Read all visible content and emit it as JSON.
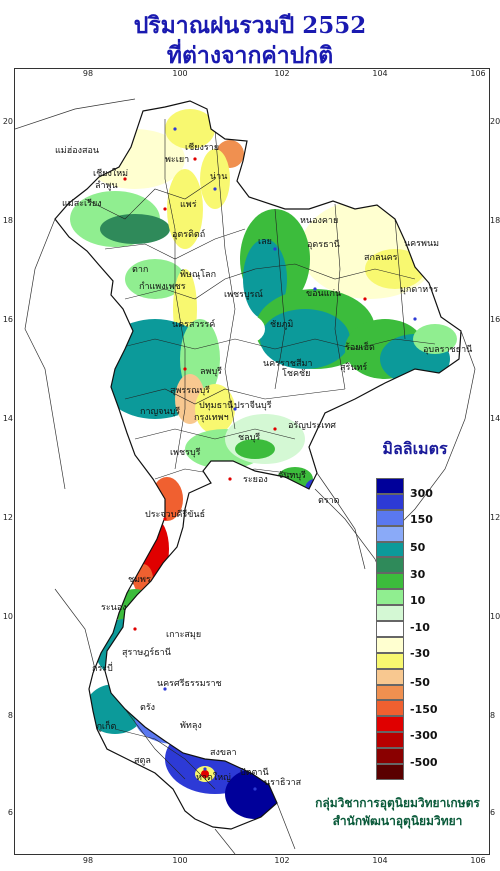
{
  "title": "ปริมาณฝนรวมปี 2552",
  "subtitle": "ที่ต่างจากค่าปกติ",
  "longitudes": [
    "98",
    "100",
    "102",
    "104",
    "106"
  ],
  "latitudes": [
    "20",
    "18",
    "16",
    "14",
    "12",
    "10",
    "8",
    "6"
  ],
  "legend": {
    "title": "มิลลิเมตร",
    "colors": [
      "#00009a",
      "#2d3ad6",
      "#5a78f0",
      "#8aaaf8",
      "#0c9a9a",
      "#2f8a5a",
      "#3cbc3c",
      "#90ee90",
      "#d4f8d4",
      "#ffffff",
      "#ffffd0",
      "#f8f870",
      "#f8c890",
      "#f09050",
      "#f06030",
      "#e00000",
      "#b80000",
      "#8a0000",
      "#5a0000"
    ],
    "labels": [
      "300",
      "150",
      "50",
      "30",
      "10",
      "-10",
      "-30",
      "-50",
      "-150",
      "-300",
      "-500"
    ]
  },
  "provinces": [
    "เชียงราย",
    "แม่ฮ่องสอน",
    "พะเยา",
    "เชียงใหม่",
    "ลำพูน",
    "น่าน",
    "แม่สะเรียง",
    "แพร่",
    "อุตรดิตถ์",
    "ตาก",
    "พิษณุโลก",
    "กำแพงเพชร",
    "เลย",
    "หนองคาย",
    "อุดรธานี",
    "นครพนม",
    "สกลนคร",
    "มุกดาหาร",
    "ขอนแก่น",
    "เพชรบูรณ์",
    "นครสวรรค์",
    "ชัยภูมิ",
    "ร้อยเอ็ด",
    "อุบลราชธานี",
    "ลพบุรี",
    "นครราชสีมา",
    "โชคชัย",
    "สุรินทร์",
    "กาญจนบุรี",
    "สุพรรณบุรี",
    "ปทุมธานี",
    "กรุงเทพฯ",
    "ปราจีนบุรี",
    "อรัญประเทศ",
    "ชลบุรี",
    "ระยอง",
    "จันทบุรี",
    "ตราด",
    "เพชรบุรี",
    "ประจวบคีรีขันธ์",
    "ชุมพร",
    "ระนอง",
    "เกาะสมุย",
    "สุราษฎร์ธานี",
    "นครศรีธรรมราช",
    "ภูเก็ต",
    "กระบี่",
    "ตรัง",
    "พัทลุง",
    "สงขลา",
    "หาดใหญ่",
    "ปัตตานี",
    "นราธิวาส",
    "สตูล"
  ],
  "credit": {
    "line1": "กลุ่มวิชาการอุตุนิยมวิทยาเกษตร",
    "line2": "สำนักพัฒนาอุตุนิยมวิทยา"
  }
}
